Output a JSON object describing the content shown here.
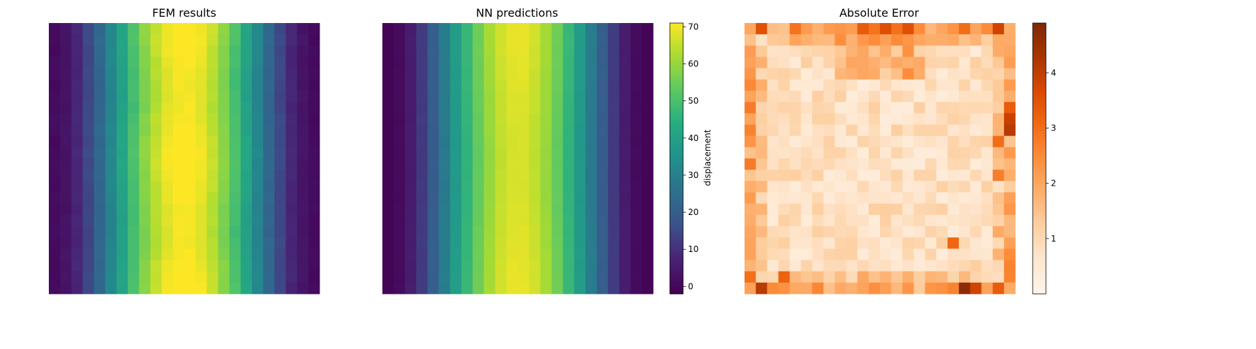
{
  "chart_data": [
    {
      "type": "heatmap",
      "title": "FEM results",
      "field": "fem",
      "grid": [
        24,
        24
      ],
      "colormap": "viridis",
      "vmin": -2,
      "vmax": 71,
      "description_of_pattern": "cosine-like columns, peak ~70 at center column, ~0 near columns 3 and 22",
      "axes_visible": false
    },
    {
      "type": "heatmap",
      "title": "NN predictions",
      "field": "nn",
      "grid": [
        24,
        24
      ],
      "colormap": "viridis",
      "vmin": -2,
      "vmax": 71,
      "axes_visible": false,
      "colorbar": {
        "label": "displacement",
        "ticks": [
          0,
          10,
          20,
          30,
          40,
          50,
          60,
          70
        ],
        "tick_labels": [
          "0",
          "10",
          "20",
          "30",
          "40",
          "50",
          "60",
          "70"
        ]
      }
    },
    {
      "type": "heatmap",
      "title": "Absolute Error",
      "field": "error",
      "grid": [
        24,
        24
      ],
      "colormap": "Oranges",
      "vmin": 0,
      "vmax": 4.9,
      "axes_visible": false,
      "colorbar": {
        "label": "",
        "ticks": [
          1,
          2,
          3,
          4
        ],
        "tick_labels": [
          "1",
          "2",
          "3",
          "4"
        ]
      },
      "hotspots": [
        {
          "row": 0,
          "col": 1,
          "value": 3.5
        },
        {
          "row": 0,
          "col": 4,
          "value": 2.9
        },
        {
          "row": 0,
          "col": 19,
          "value": 3.0
        },
        {
          "row": 0,
          "col": 22,
          "value": 3.8
        },
        {
          "row": 7,
          "col": 23,
          "value": 3.3
        },
        {
          "row": 8,
          "col": 23,
          "value": 3.9
        },
        {
          "row": 9,
          "col": 23,
          "value": 4.1
        },
        {
          "row": 10,
          "col": 22,
          "value": 3.0
        },
        {
          "row": 13,
          "col": 22,
          "value": 2.7
        },
        {
          "row": 19,
          "col": 18,
          "value": 3.1
        },
        {
          "row": 22,
          "col": 3,
          "value": 3.2
        },
        {
          "row": 23,
          "col": 1,
          "value": 4.1
        },
        {
          "row": 23,
          "col": 19,
          "value": 4.7
        },
        {
          "row": 23,
          "col": 20,
          "value": 3.8
        },
        {
          "row": 23,
          "col": 22,
          "value": 3.3
        }
      ]
    }
  ]
}
